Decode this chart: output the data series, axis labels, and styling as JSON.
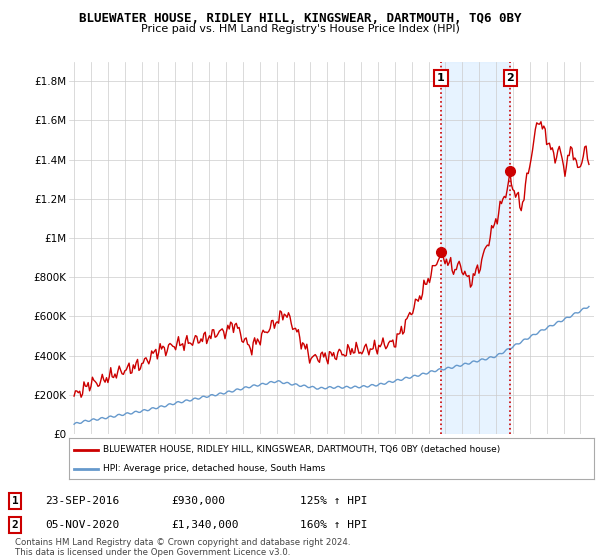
{
  "title": "BLUEWATER HOUSE, RIDLEY HILL, KINGSWEAR, DARTMOUTH, TQ6 0BY",
  "subtitle": "Price paid vs. HM Land Registry's House Price Index (HPI)",
  "ylim": [
    0,
    1900000
  ],
  "yticks": [
    0,
    200000,
    400000,
    600000,
    800000,
    1000000,
    1200000,
    1400000,
    1600000,
    1800000
  ],
  "ytick_labels": [
    "£0",
    "£200K",
    "£400K",
    "£600K",
    "£800K",
    "£1M",
    "£1.2M",
    "£1.4M",
    "£1.6M",
    "£1.8M"
  ],
  "xlim_start": 1994.7,
  "xlim_end": 2025.8,
  "xticks": [
    1995,
    1996,
    1997,
    1998,
    1999,
    2000,
    2001,
    2002,
    2003,
    2004,
    2005,
    2006,
    2007,
    2008,
    2009,
    2010,
    2011,
    2012,
    2013,
    2014,
    2015,
    2016,
    2017,
    2018,
    2019,
    2020,
    2021,
    2022,
    2023,
    2024,
    2025
  ],
  "sale1_x": 2016.73,
  "sale1_y": 930000,
  "sale1_label": "1",
  "sale2_x": 2020.84,
  "sale2_y": 1340000,
  "sale2_label": "2",
  "red_line_color": "#cc0000",
  "blue_line_color": "#6699cc",
  "vline_color": "#cc0000",
  "shade_color": "#ddeeff",
  "grid_color": "#cccccc",
  "bg_color": "#ffffff",
  "legend_line1": "BLUEWATER HOUSE, RIDLEY HILL, KINGSWEAR, DARTMOUTH, TQ6 0BY (detached house)",
  "legend_line2": "HPI: Average price, detached house, South Hams",
  "table_row1": [
    "1",
    "23-SEP-2016",
    "£930,000",
    "125% ↑ HPI"
  ],
  "table_row2": [
    "2",
    "05-NOV-2020",
    "£1,340,000",
    "160% ↑ HPI"
  ],
  "footer": "Contains HM Land Registry data © Crown copyright and database right 2024.\nThis data is licensed under the Open Government Licence v3.0.",
  "title_fontsize": 9,
  "subtitle_fontsize": 8
}
